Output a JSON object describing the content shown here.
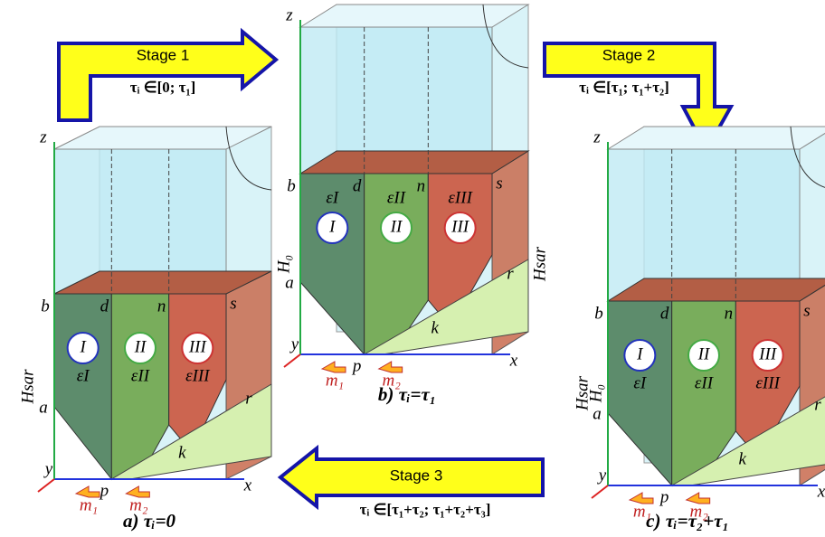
{
  "stages": [
    {
      "label": "Stage 1",
      "range": "τᵢ ∈[0; τ₁]"
    },
    {
      "label": "Stage 2",
      "range": "τᵢ ∈[τ₁; τ₁+τ₂]"
    },
    {
      "label": "Stage 3",
      "range": "τᵢ ∈[τ₁+τ₂; τ₁+τ₂+τ₃]"
    }
  ],
  "panels": [
    {
      "caption": "a) τᵢ=0",
      "points": [
        "z",
        "b",
        "d",
        "n",
        "s",
        "a",
        "r",
        "k",
        "p",
        "x",
        "y"
      ],
      "zones": [
        "I",
        "II",
        "III"
      ],
      "strains": [
        "εI",
        "εII",
        "εIII"
      ],
      "forces": [
        "m₁",
        "m₂"
      ],
      "heights": [
        "Hsar"
      ]
    },
    {
      "caption": "b) τᵢ=τ₁",
      "points": [
        "z",
        "b",
        "d",
        "n",
        "s",
        "a",
        "r",
        "k",
        "p",
        "x",
        "y"
      ],
      "zones": [
        "I",
        "II",
        "III"
      ],
      "strains": [
        "εI",
        "εII",
        "εIII"
      ],
      "forces": [
        "m₁",
        "m₂"
      ],
      "heights": [
        "H₀",
        "Hsar"
      ]
    },
    {
      "caption": "c) τᵢ=τ₂+τ₁",
      "points": [
        "z",
        "b",
        "d",
        "n",
        "s",
        "a",
        "r",
        "k",
        "p",
        "x",
        "y"
      ],
      "zones": [
        "I",
        "II",
        "III"
      ],
      "strains": [
        "εI",
        "εII",
        "εIII"
      ],
      "forces": [
        "m₁",
        "m₂"
      ],
      "heights": [
        "Hsar",
        "H₀"
      ]
    }
  ]
}
